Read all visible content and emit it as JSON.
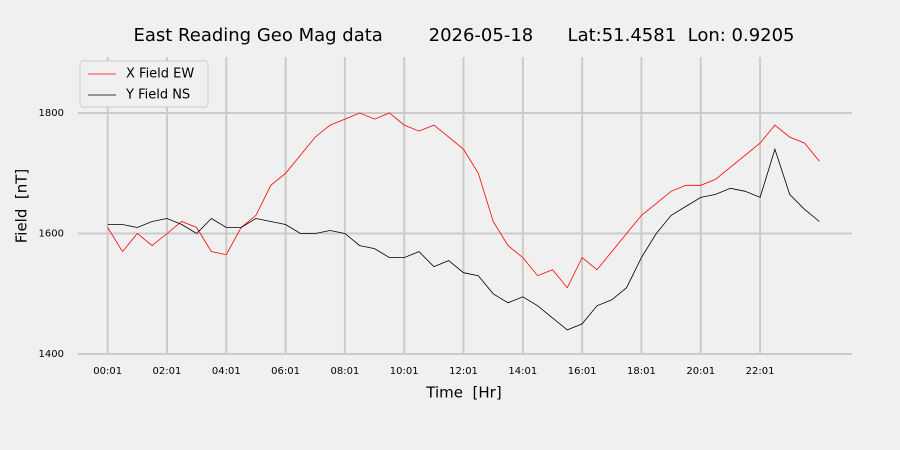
{
  "chart_data": {
    "type": "line",
    "title": "East Reading Geo Mag data        2026-05-18      Lat:51.4581  Lon: 0.9205",
    "x_label": "Time  [Hr]",
    "y_label": "Field  [nT]",
    "x": [
      0,
      0.5,
      1,
      1.5,
      2,
      2.5,
      3,
      3.5,
      4,
      4.5,
      5,
      5.5,
      6,
      6.5,
      7,
      7.5,
      8,
      8.5,
      9,
      9.5,
      10,
      10.5,
      11,
      11.5,
      12,
      12.5,
      13,
      13.5,
      14,
      14.5,
      15,
      15.5,
      16,
      16.5,
      17,
      17.5,
      18,
      18.5,
      19,
      19.5,
      20,
      20.5,
      21,
      21.5,
      22,
      22.5,
      23,
      23.5,
      24
    ],
    "series": [
      {
        "name": "X Field EW",
        "color": "#ff0000",
        "values": [
          1610,
          1570,
          1600,
          1580,
          1600,
          1620,
          1610,
          1570,
          1565,
          1610,
          1630,
          1680,
          1700,
          1730,
          1760,
          1780,
          1790,
          1800,
          1790,
          1800,
          1780,
          1770,
          1780,
          1760,
          1740,
          1700,
          1620,
          1580,
          1560,
          1530,
          1540,
          1510,
          1560,
          1540,
          1570,
          1600,
          1630,
          1650,
          1670,
          1680,
          1680,
          1690,
          1710,
          1730,
          1750,
          1780,
          1760,
          1750,
          1720
        ]
      },
      {
        "name": "Y Field NS",
        "color": "#000000",
        "values": [
          1615,
          1615,
          1610,
          1620,
          1625,
          1615,
          1600,
          1625,
          1610,
          1610,
          1625,
          1620,
          1615,
          1600,
          1600,
          1605,
          1600,
          1580,
          1575,
          1560,
          1560,
          1570,
          1545,
          1555,
          1535,
          1530,
          1500,
          1485,
          1495,
          1480,
          1460,
          1440,
          1450,
          1480,
          1490,
          1510,
          1560,
          1600,
          1630,
          1645,
          1660,
          1665,
          1675,
          1670,
          1660,
          1740,
          1665,
          1640,
          1620
        ]
      }
    ],
    "xlim": [
      -1,
      25.1
    ],
    "ylim": [
      1400,
      1893
    ],
    "xticks": [
      {
        "value": 0,
        "label": "00:01"
      },
      {
        "value": 2,
        "label": "02:01"
      },
      {
        "value": 4,
        "label": "04:01"
      },
      {
        "value": 6,
        "label": "06:01"
      },
      {
        "value": 8,
        "label": "08:01"
      },
      {
        "value": 10,
        "label": "10:01"
      },
      {
        "value": 12,
        "label": "12:01"
      },
      {
        "value": 14,
        "label": "14:01"
      },
      {
        "value": 16,
        "label": "16:01"
      },
      {
        "value": 18,
        "label": "18:01"
      },
      {
        "value": 20,
        "label": "20:01"
      },
      {
        "value": 22,
        "label": "22:01"
      }
    ],
    "yticks": [
      1400,
      1600,
      1800
    ],
    "grid": true,
    "legend": "upper left"
  }
}
